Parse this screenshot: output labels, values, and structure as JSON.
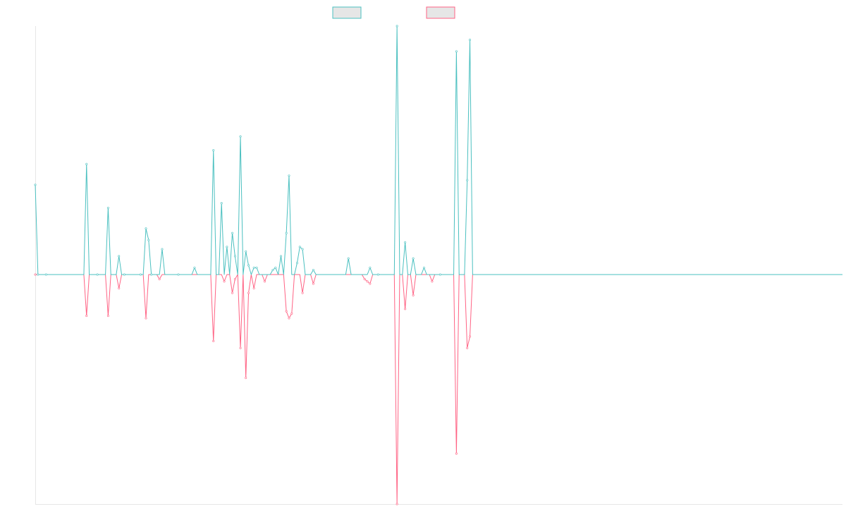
{
  "chart_data": {
    "type": "line",
    "title": "",
    "xlabel": "",
    "ylabel": "",
    "x_count": 300,
    "ylim": [
      -1.0,
      1.08
    ],
    "grid": false,
    "legend_position": "top-center",
    "colors": {
      "series_a": "#4bc0c0",
      "series_b": "#ff6384",
      "legend_fill": "#e6e6e6",
      "axis": "#e6e6e6"
    },
    "series": [
      {
        "key": "a",
        "color": "#4bc0c0",
        "spikes": [
          [
            0,
            0.39
          ],
          [
            1,
            0.0
          ],
          [
            4,
            0.0
          ],
          [
            19,
            0.48
          ],
          [
            23,
            0.0
          ],
          [
            27,
            0.29
          ],
          [
            31,
            0.08
          ],
          [
            33,
            0.0
          ],
          [
            39,
            0.0
          ],
          [
            41,
            0.2
          ],
          [
            42,
            0.15
          ],
          [
            43,
            0.0
          ],
          [
            47,
            0.11
          ],
          [
            53,
            0.0
          ],
          [
            59,
            0.03
          ],
          [
            66,
            0.54
          ],
          [
            69,
            0.31
          ],
          [
            71,
            0.12
          ],
          [
            73,
            0.18
          ],
          [
            74,
            0.08
          ],
          [
            76,
            0.6
          ],
          [
            78,
            0.1
          ],
          [
            79,
            0.04
          ],
          [
            81,
            0.03
          ],
          [
            82,
            0.03
          ],
          [
            88,
            0.02
          ],
          [
            89,
            0.03
          ],
          [
            91,
            0.08
          ],
          [
            93,
            0.18
          ],
          [
            94,
            0.43
          ],
          [
            97,
            0.05
          ],
          [
            98,
            0.12
          ],
          [
            99,
            0.11
          ],
          [
            103,
            0.02
          ],
          [
            116,
            0.07
          ],
          [
            124,
            0.03
          ],
          [
            127,
            0.0
          ],
          [
            134,
            1.08
          ],
          [
            137,
            0.14
          ],
          [
            140,
            0.07
          ],
          [
            144,
            0.03
          ],
          [
            150,
            0.0
          ],
          [
            156,
            0.97
          ],
          [
            160,
            0.41
          ],
          [
            161,
            1.02
          ]
        ]
      },
      {
        "key": "b",
        "color": "#ff6384",
        "spikes": [
          [
            0,
            0.0
          ],
          [
            19,
            -0.18
          ],
          [
            27,
            -0.18
          ],
          [
            31,
            -0.06
          ],
          [
            41,
            -0.19
          ],
          [
            46,
            -0.02
          ],
          [
            66,
            -0.29
          ],
          [
            70,
            -0.03
          ],
          [
            73,
            -0.08
          ],
          [
            74,
            -0.02
          ],
          [
            76,
            -0.32
          ],
          [
            78,
            -0.45
          ],
          [
            79,
            -0.08
          ],
          [
            81,
            -0.06
          ],
          [
            85,
            -0.03
          ],
          [
            93,
            -0.16
          ],
          [
            94,
            -0.19
          ],
          [
            95,
            -0.17
          ],
          [
            99,
            -0.08
          ],
          [
            103,
            -0.04
          ],
          [
            122,
            -0.02
          ],
          [
            123,
            -0.03
          ],
          [
            124,
            -0.04
          ],
          [
            134,
            -1.0
          ],
          [
            137,
            -0.15
          ],
          [
            140,
            -0.09
          ],
          [
            147,
            -0.03
          ],
          [
            156,
            -0.78
          ],
          [
            160,
            -0.32
          ],
          [
            161,
            -0.27
          ]
        ]
      }
    ]
  }
}
